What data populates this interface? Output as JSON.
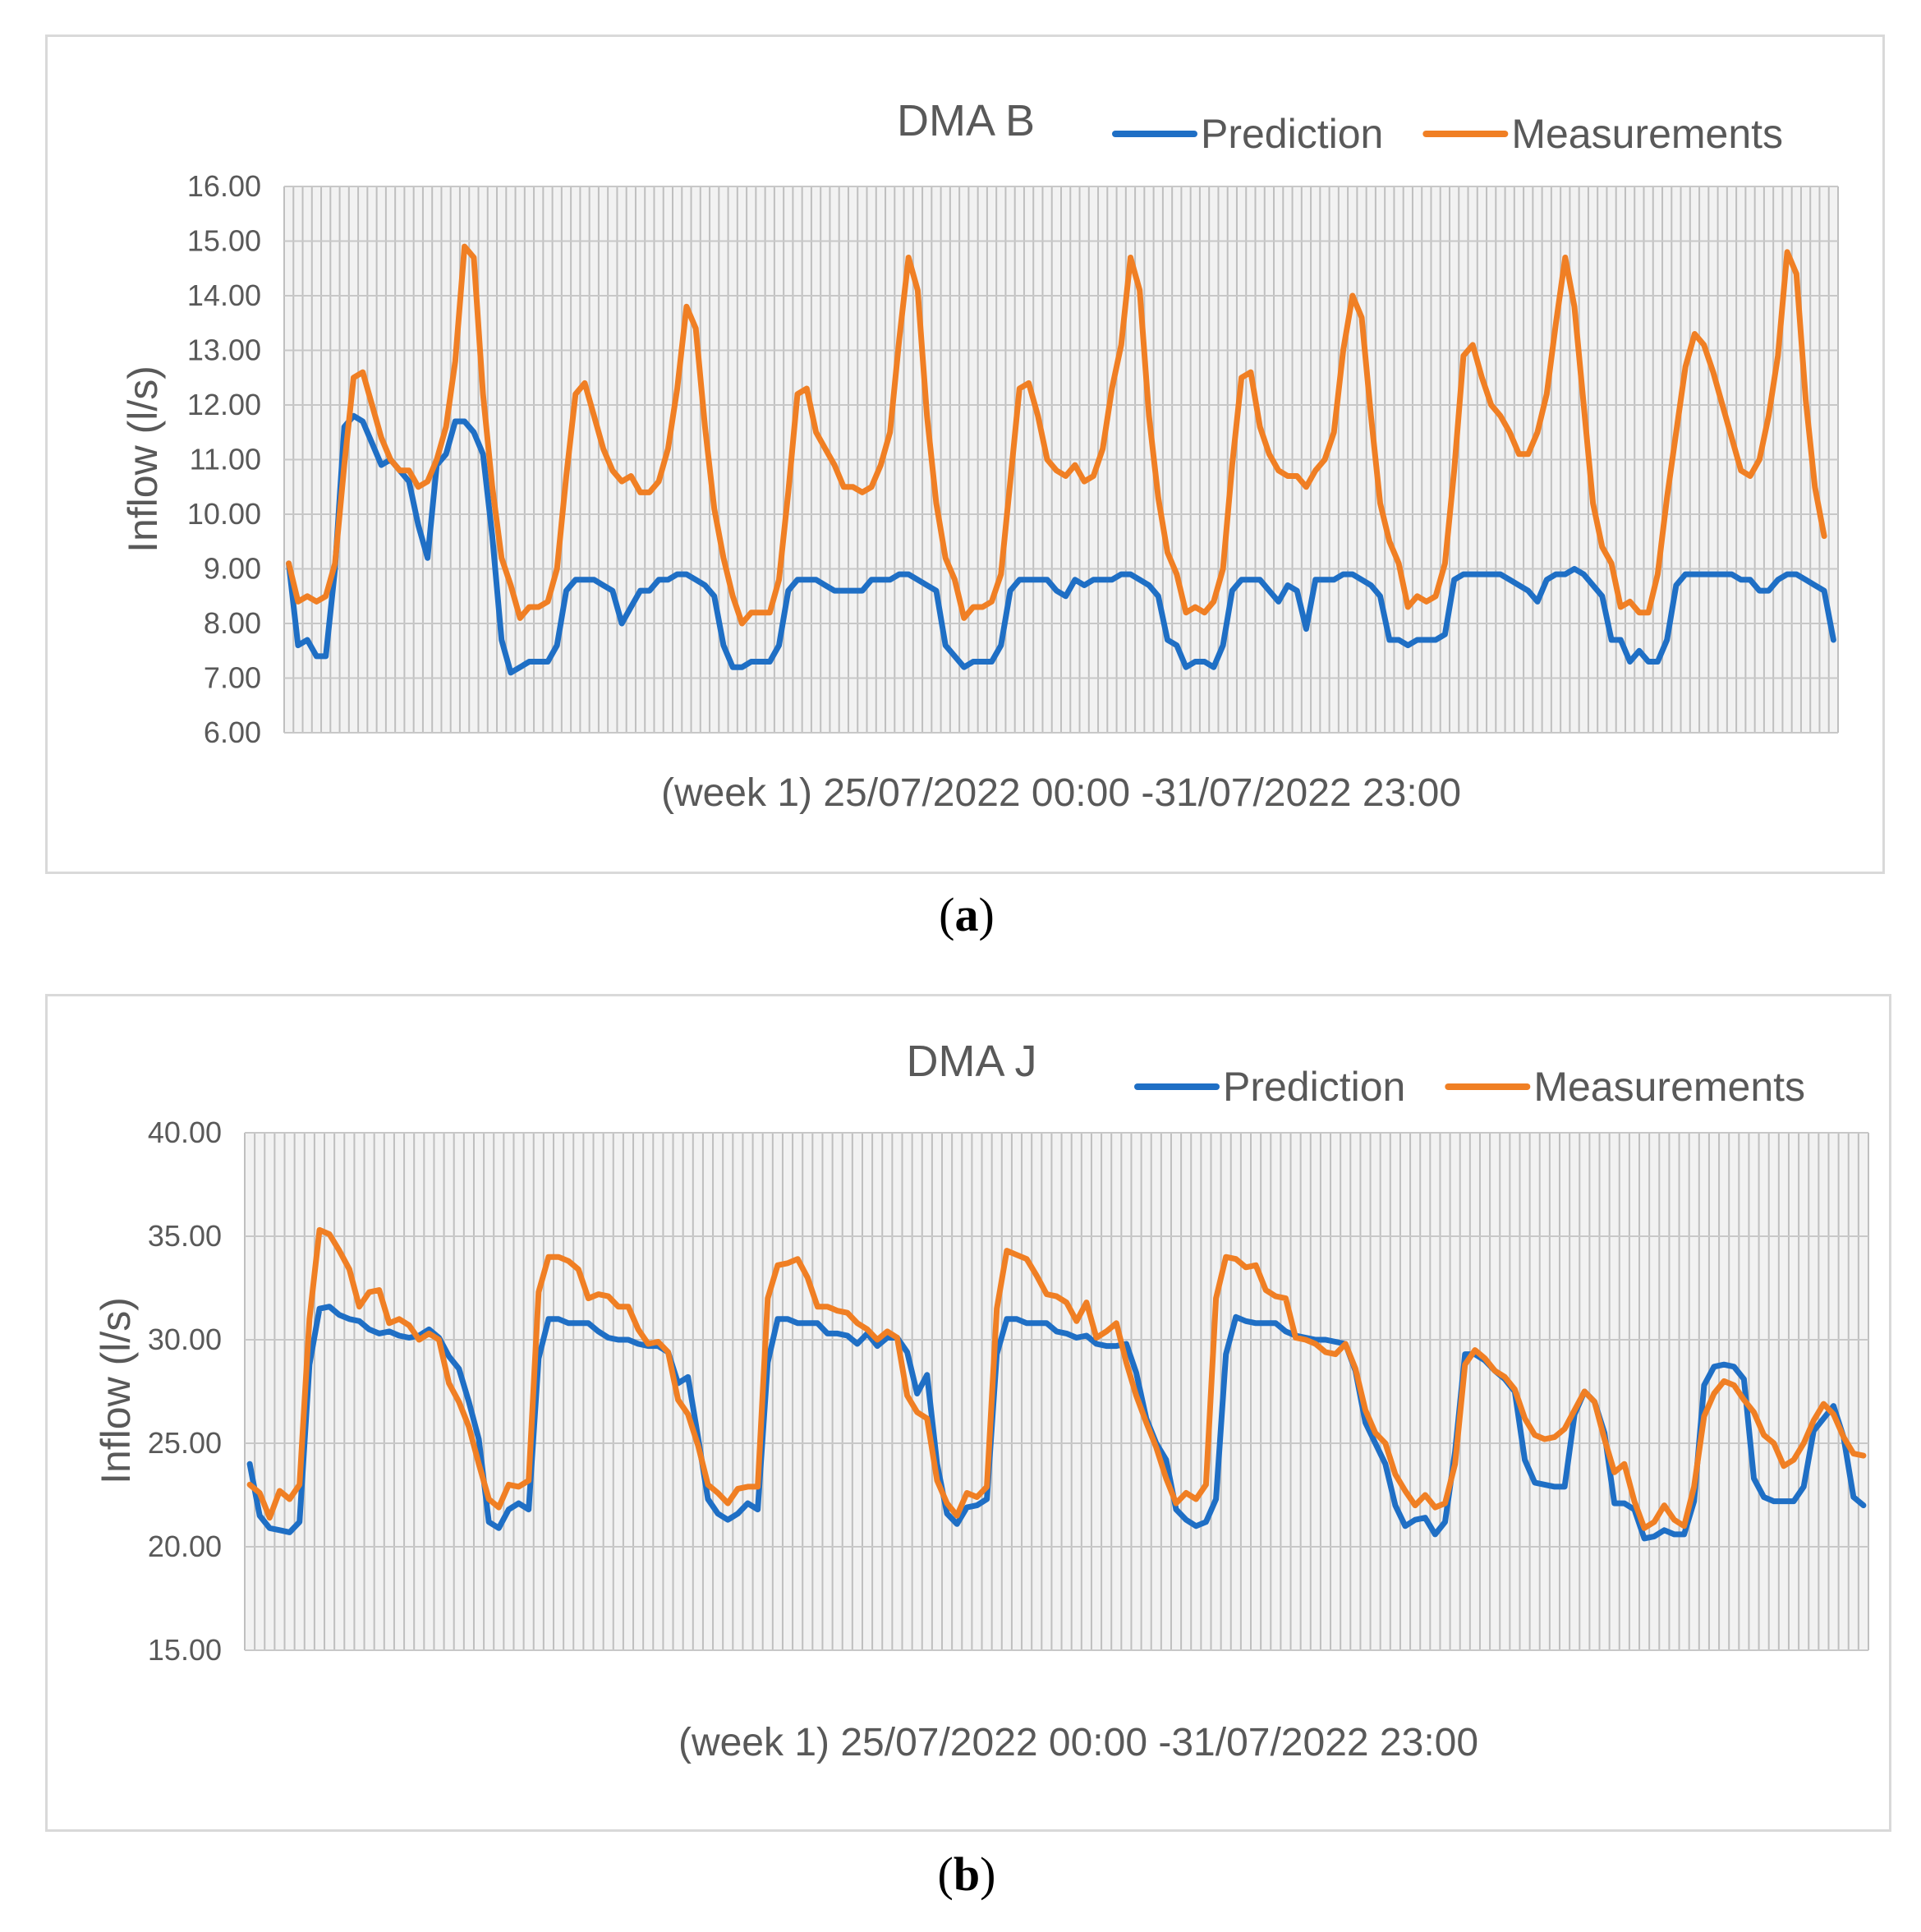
{
  "charts": [
    {
      "caption": "a",
      "chart_data": {
        "type": "line",
        "title": "DMA B",
        "xlabel": "(week 1) 25/07/2022 00:00 -31/07/2022 23:00",
        "ylabel": "Inflow (l/s)",
        "ylim": [
          6,
          16
        ],
        "ytick_step": 1,
        "ytick_decimals": 2,
        "grid": true,
        "legend_position": "top-right",
        "series": [
          {
            "name": "Prediction",
            "color": "#1f6fc5",
            "values": [
              9.1,
              7.6,
              7.7,
              7.4,
              7.4,
              9.0,
              11.6,
              11.8,
              11.7,
              11.3,
              10.9,
              11.0,
              10.8,
              10.6,
              9.8,
              9.2,
              10.9,
              11.1,
              11.7,
              11.7,
              11.5,
              11.1,
              9.6,
              7.7,
              7.1,
              7.2,
              7.3,
              7.3,
              7.3,
              7.6,
              8.6,
              8.8,
              8.8,
              8.8,
              8.7,
              8.6,
              8.0,
              8.3,
              8.6,
              8.6,
              8.8,
              8.8,
              8.9,
              8.9,
              8.8,
              8.7,
              8.5,
              7.6,
              7.2,
              7.2,
              7.3,
              7.3,
              7.3,
              7.6,
              8.6,
              8.8,
              8.8,
              8.8,
              8.7,
              8.6,
              8.6,
              8.6,
              8.6,
              8.8,
              8.8,
              8.8,
              8.9,
              8.9,
              8.8,
              8.7,
              8.6,
              7.6,
              7.4,
              7.2,
              7.3,
              7.3,
              7.3,
              7.6,
              8.6,
              8.8,
              8.8,
              8.8,
              8.8,
              8.6,
              8.5,
              8.8,
              8.7,
              8.8,
              8.8,
              8.8,
              8.9,
              8.9,
              8.8,
              8.7,
              8.5,
              7.7,
              7.6,
              7.2,
              7.3,
              7.3,
              7.2,
              7.6,
              8.6,
              8.8,
              8.8,
              8.8,
              8.6,
              8.4,
              8.7,
              8.6,
              7.9,
              8.8,
              8.8,
              8.8,
              8.9,
              8.9,
              8.8,
              8.7,
              8.5,
              7.7,
              7.7,
              7.6,
              7.7,
              7.7,
              7.7,
              7.8,
              8.8,
              8.9,
              8.9,
              8.9,
              8.9,
              8.9,
              8.8,
              8.7,
              8.6,
              8.4,
              8.8,
              8.9,
              8.9,
              9.0,
              8.9,
              8.7,
              8.5,
              7.7,
              7.7,
              7.3,
              7.5,
              7.3,
              7.3,
              7.7,
              8.7,
              8.9,
              8.9,
              8.9,
              8.9,
              8.9,
              8.9,
              8.8,
              8.8,
              8.6,
              8.6,
              8.8,
              8.9,
              8.9,
              8.8,
              8.7,
              8.6,
              7.7
            ]
          },
          {
            "name": "Measurements",
            "color": "#f07f24",
            "values": [
              9.1,
              8.4,
              8.5,
              8.4,
              8.5,
              9.1,
              10.9,
              12.5,
              12.6,
              12.0,
              11.4,
              11.0,
              10.8,
              10.8,
              10.5,
              10.6,
              11.0,
              11.6,
              12.8,
              14.9,
              14.7,
              12.2,
              10.5,
              9.2,
              8.7,
              8.1,
              8.3,
              8.3,
              8.4,
              9.0,
              10.7,
              12.2,
              12.4,
              11.8,
              11.2,
              10.8,
              10.6,
              10.7,
              10.4,
              10.4,
              10.6,
              11.2,
              12.3,
              13.8,
              13.4,
              11.6,
              10.1,
              9.2,
              8.5,
              8.0,
              8.2,
              8.2,
              8.2,
              8.8,
              10.4,
              12.2,
              12.3,
              11.5,
              11.2,
              10.9,
              10.5,
              10.5,
              10.4,
              10.5,
              10.9,
              11.5,
              13.2,
              14.7,
              14.1,
              11.8,
              10.2,
              9.2,
              8.8,
              8.1,
              8.3,
              8.3,
              8.4,
              8.9,
              10.6,
              12.3,
              12.4,
              11.8,
              11.0,
              10.8,
              10.7,
              10.9,
              10.6,
              10.7,
              11.2,
              12.3,
              13.1,
              14.7,
              14.1,
              11.8,
              10.3,
              9.3,
              8.9,
              8.2,
              8.3,
              8.2,
              8.4,
              9.0,
              10.9,
              12.5,
              12.6,
              11.6,
              11.1,
              10.8,
              10.7,
              10.7,
              10.5,
              10.8,
              11.0,
              11.5,
              13.0,
              14.0,
              13.6,
              11.8,
              10.2,
              9.5,
              9.1,
              8.3,
              8.5,
              8.4,
              8.5,
              9.1,
              10.8,
              12.9,
              13.1,
              12.5,
              12.0,
              11.8,
              11.5,
              11.1,
              11.1,
              11.5,
              12.2,
              13.5,
              14.7,
              13.8,
              12.0,
              10.2,
              9.4,
              9.1,
              8.3,
              8.4,
              8.2,
              8.2,
              8.9,
              10.3,
              11.5,
              12.7,
              13.3,
              13.1,
              12.6,
              12.0,
              11.4,
              10.8,
              10.7,
              11.0,
              11.8,
              12.9,
              14.8,
              14.4,
              12.1,
              10.5,
              9.6
            ]
          }
        ]
      }
    },
    {
      "caption": "b",
      "chart_data": {
        "type": "line",
        "title": "DMA J",
        "xlabel": "(week 1) 25/07/2022 00:00 -31/07/2022 23:00",
        "ylabel": "Inflow (l/s)",
        "ylim": [
          15,
          40
        ],
        "ytick_step": 5,
        "ytick_decimals": 2,
        "grid": true,
        "legend_position": "top-right",
        "series": [
          {
            "name": "Prediction",
            "color": "#1f6fc5",
            "values": [
              24.0,
              21.5,
              20.9,
              20.8,
              20.7,
              21.2,
              28.8,
              31.5,
              31.6,
              31.2,
              31.0,
              30.9,
              30.5,
              30.3,
              30.4,
              30.2,
              30.1,
              30.2,
              30.5,
              30.1,
              29.2,
              28.6,
              27.0,
              25.2,
              21.2,
              20.9,
              21.8,
              22.1,
              21.8,
              29.1,
              31.0,
              31.0,
              30.8,
              30.8,
              30.8,
              30.4,
              30.1,
              30.0,
              30.0,
              29.8,
              29.7,
              29.7,
              29.4,
              27.9,
              28.2,
              25.3,
              22.3,
              21.6,
              21.3,
              21.6,
              22.1,
              21.8,
              28.9,
              31.0,
              31.0,
              30.8,
              30.8,
              30.8,
              30.3,
              30.3,
              30.2,
              29.8,
              30.3,
              29.7,
              30.1,
              30.1,
              29.4,
              27.4,
              28.3,
              24.0,
              21.6,
              21.1,
              21.9,
              22.0,
              22.3,
              29.3,
              31.0,
              31.0,
              30.8,
              30.8,
              30.8,
              30.4,
              30.3,
              30.1,
              30.2,
              29.8,
              29.7,
              29.7,
              29.8,
              28.4,
              26.2,
              25.0,
              24.2,
              21.8,
              21.3,
              21.0,
              21.2,
              22.3,
              29.3,
              31.1,
              30.9,
              30.8,
              30.8,
              30.8,
              30.4,
              30.2,
              30.1,
              30.0,
              30.0,
              29.9,
              29.8,
              28.5,
              26.0,
              25.0,
              24.0,
              22.0,
              21.0,
              21.3,
              21.4,
              20.6,
              21.2,
              24.6,
              29.3,
              29.3,
              29.0,
              28.5,
              28.1,
              27.5,
              24.2,
              23.1,
              23.0,
              22.9,
              22.9,
              26.4,
              27.5,
              27.0,
              25.5,
              22.1,
              22.1,
              21.8,
              20.4,
              20.5,
              20.8,
              20.6,
              20.6,
              22.2,
              27.8,
              28.7,
              28.8,
              28.7,
              28.1,
              23.3,
              22.4,
              22.2,
              22.2,
              22.2,
              22.9,
              25.6,
              26.2,
              26.8,
              25.3,
              22.4,
              22.0
            ]
          },
          {
            "name": "Measurements",
            "color": "#f07f24",
            "values": [
              23.0,
              22.6,
              21.4,
              22.7,
              22.3,
              23.0,
              31.0,
              35.3,
              35.1,
              34.3,
              33.4,
              31.6,
              32.3,
              32.4,
              30.8,
              31.0,
              30.7,
              30.0,
              30.3,
              30.0,
              27.9,
              27.0,
              25.8,
              24.0,
              22.3,
              21.9,
              23.0,
              22.9,
              23.2,
              32.3,
              34.0,
              34.0,
              33.8,
              33.4,
              32.0,
              32.2,
              32.1,
              31.6,
              31.6,
              30.5,
              29.8,
              29.9,
              29.4,
              27.1,
              26.4,
              24.9,
              23.0,
              22.6,
              22.1,
              22.8,
              22.9,
              22.9,
              32.0,
              33.6,
              33.7,
              33.9,
              33.0,
              31.6,
              31.6,
              31.4,
              31.3,
              30.8,
              30.5,
              30.0,
              30.4,
              30.1,
              27.3,
              26.5,
              26.2,
              23.2,
              22.1,
              21.5,
              22.6,
              22.4,
              22.9,
              31.5,
              34.3,
              34.1,
              33.9,
              33.1,
              32.2,
              32.1,
              31.8,
              30.9,
              31.8,
              30.1,
              30.4,
              30.8,
              28.9,
              27.3,
              26.0,
              24.8,
              23.3,
              22.1,
              22.6,
              22.3,
              23.0,
              32.0,
              34.0,
              33.9,
              33.5,
              33.6,
              32.4,
              32.1,
              32.0,
              30.1,
              30.0,
              29.8,
              29.4,
              29.3,
              29.8,
              28.6,
              26.6,
              25.5,
              25.0,
              23.5,
              22.7,
              22.0,
              22.5,
              21.9,
              22.1,
              24.0,
              28.8,
              29.5,
              29.1,
              28.5,
              28.2,
              27.6,
              26.2,
              25.4,
              25.2,
              25.3,
              25.7,
              26.6,
              27.5,
              27.0,
              25.2,
              23.6,
              24.0,
              22.2,
              20.9,
              21.2,
              22.0,
              21.3,
              21.0,
              22.9,
              26.3,
              27.4,
              28.0,
              27.8,
              27.1,
              26.5,
              25.4,
              25.0,
              23.9,
              24.2,
              25.0,
              26.1,
              26.9,
              26.4,
              25.3,
              24.5,
              24.4
            ]
          }
        ]
      }
    }
  ]
}
